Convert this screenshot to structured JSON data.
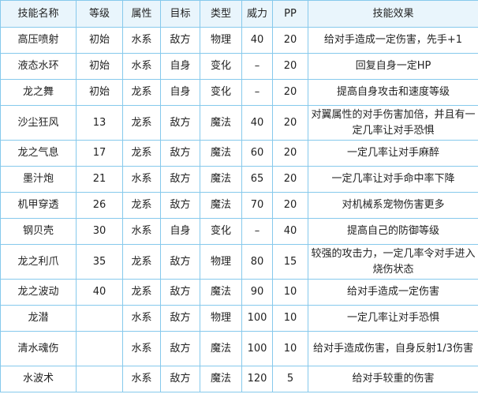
{
  "table": {
    "header": [
      "技能名称",
      "等级",
      "属性",
      "目标",
      "类型",
      "威力",
      "PP",
      "技能效果"
    ],
    "rows": [
      [
        "高压喷射",
        "初始",
        "水系",
        "敌方",
        "物理",
        "40",
        "20",
        "给对手造成一定伤害，先手+1"
      ],
      [
        "液态水环",
        "初始",
        "水系",
        "自身",
        "变化",
        "–",
        "20",
        "回复自身一定HP"
      ],
      [
        "龙之舞",
        "初始",
        "龙系",
        "自身",
        "变化",
        "–",
        "20",
        "提高自身攻击和速度等级"
      ],
      [
        "沙尘狂风",
        "13",
        "龙系",
        "敌方",
        "魔法",
        "40",
        "20",
        "对翼属性的对手伤害加倍，并且有一定几率让对手恐惧"
      ],
      [
        "龙之气息",
        "17",
        "龙系",
        "敌方",
        "魔法",
        "60",
        "20",
        "一定几率让对手麻醉"
      ],
      [
        "墨汁炮",
        "21",
        "水系",
        "敌方",
        "魔法",
        "65",
        "20",
        "一定几率让对手命中率下降"
      ],
      [
        "机甲穿透",
        "26",
        "龙系",
        "敌方",
        "魔法",
        "70",
        "20",
        "对机械系宠物伤害更多"
      ],
      [
        "钢贝壳",
        "30",
        "水系",
        "自身",
        "变化",
        "–",
        "40",
        "提高自己的防御等级"
      ],
      [
        "龙之利爪",
        "35",
        "龙系",
        "敌方",
        "物理",
        "80",
        "15",
        "较强的攻击力，一定几率令对手进入烧伤状态"
      ],
      [
        "龙之波动",
        "40",
        "龙系",
        "敌方",
        "魔法",
        "90",
        "10",
        "给对手造成一定伤害"
      ],
      [
        "龙潜",
        null,
        "水系",
        "敌方",
        "物理",
        "100",
        "10",
        "一定几率让对手恐惧"
      ],
      [
        "清水魂伤",
        null,
        "水系",
        "敌方",
        "魔法",
        "100",
        "10",
        "给对手造成伤害，自身反射1/3伤害"
      ],
      [
        "水波术",
        null,
        "水系",
        "敌方",
        "魔法",
        "120",
        "5",
        "给对手较重的伤害"
      ]
    ]
  }
}
